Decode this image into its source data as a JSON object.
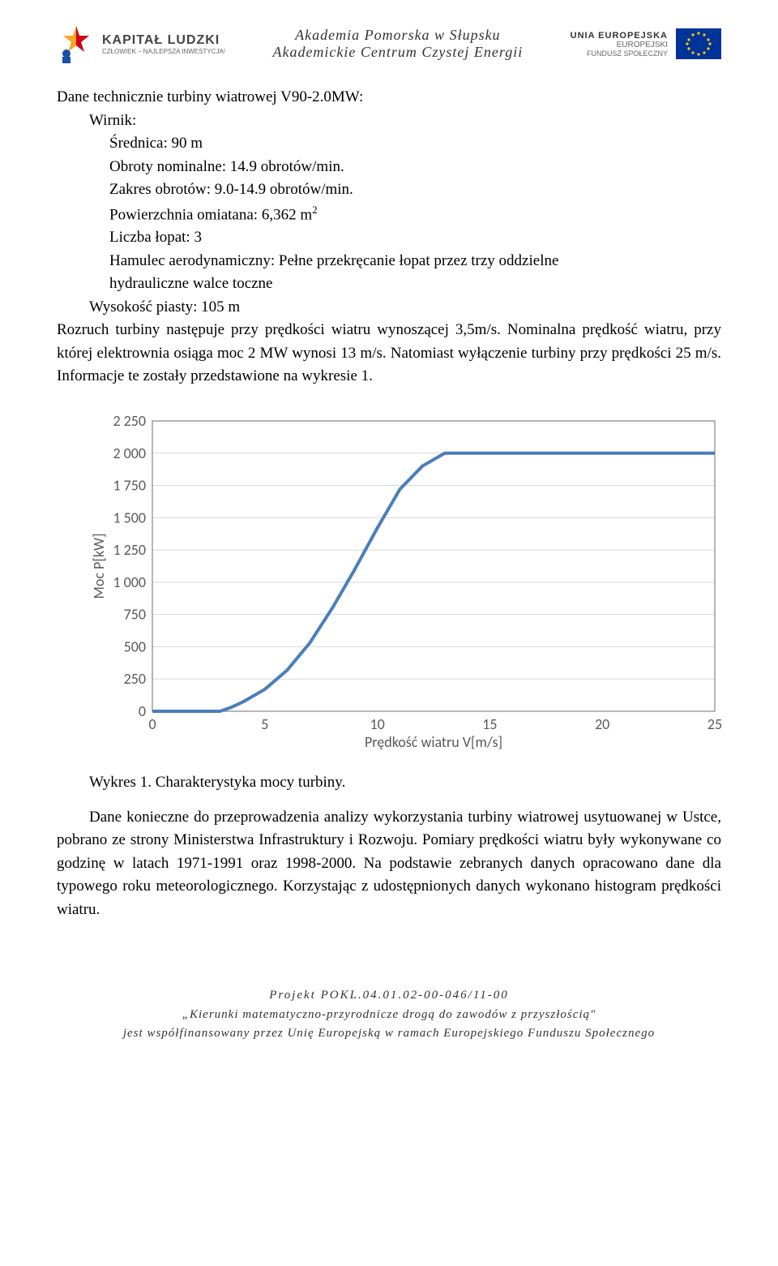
{
  "header": {
    "left_logo_main": "KAPITAŁ LUDZKI",
    "left_logo_sub": "CZŁOWIEK – NAJLEPSZA INWESTYCJA!",
    "center_line1": "Akademia Pomorska w Słupsku",
    "center_line2": "Akademickie Centrum Czystej Energii",
    "right_main": "UNIA EUROPEJSKA",
    "right_sub1": "EUROPEJSKI",
    "right_sub2": "FUNDUSZ SPOŁECZNY"
  },
  "body": {
    "line1": "Dane technicznie turbiny wiatrowej V90-2.0MW:",
    "line2": "Wirnik:",
    "line3": "Średnica: 90 m",
    "line4": "Obroty nominalne: 14.9 obrotów/min.",
    "line5": "Zakres obrotów: 9.0-14.9 obrotów/min.",
    "line6a": "Powierzchnia omiatana: 6,362 m",
    "line6b": "2",
    "line7": "Liczba łopat: 3",
    "line8a": "Hamulec aerodynamiczny: Pełne przekręcanie łopat przez trzy oddzielne",
    "line8b": "hydrauliczne walce toczne",
    "line9": "Wysokość piasty: 105 m",
    "para": "Rozruch turbiny następuje przy prędkości wiatru wynoszącej 3,5m/s. Nominalna prędkość wiatru, przy której elektrownia osiąga moc 2 MW wynosi 13 m/s. Natomiast wyłączenie turbiny przy prędkości 25 m/s. Informacje te zostały przedstawione na wykresie 1.",
    "caption": "Wykres 1. Charakterystyka mocy turbiny.",
    "para2": "Dane konieczne do przeprowadzenia analizy wykorzystania turbiny wiatrowej usytuowanej w Ustce, pobrano ze strony Ministerstwa Infrastruktury i Rozwoju. Pomiary prędkości wiatru były wykonywane co godzinę w latach 1971-1991 oraz 1998-2000. Na podstawie zebranych danych opracowano dane dla typowego roku meteorologicznego. Korzystając z udostępnionych danych wykonano histogram prędkości wiatru."
  },
  "chart": {
    "type": "line",
    "title": "",
    "xlabel": "Prędkość wiatru V[m/s]",
    "ylabel": "Moc P[kW]",
    "xlim": [
      0,
      25
    ],
    "ylim": [
      0,
      2250
    ],
    "xticks": [
      0,
      5,
      10,
      15,
      20,
      25
    ],
    "yticks": [
      0,
      250,
      500,
      750,
      1000,
      1250,
      1500,
      1750,
      2000,
      2250
    ],
    "series_color": "#4a7ebb",
    "series_width": 4,
    "grid_color": "#d9d9d9",
    "border_color": "#868686",
    "background_color": "#ffffff",
    "label_fontsize": 18,
    "tick_fontsize": 18,
    "data_x": [
      0,
      1,
      2,
      3,
      3.5,
      4,
      5,
      6,
      7,
      8,
      9,
      10,
      11,
      12,
      13,
      14,
      15,
      20,
      25
    ],
    "data_y": [
      0,
      0,
      0,
      0,
      30,
      70,
      170,
      320,
      530,
      800,
      1100,
      1420,
      1720,
      1900,
      2000,
      2000,
      2000,
      2000,
      2000
    ]
  },
  "footer": {
    "line1": "Projekt POKL.04.01.02-00-046/11-00",
    "line2": "„Kierunki matematyczno-przyrodnicze drogą do zawodów z przyszłością\"",
    "line3": "jest współfinansowany przez Unię Europejską w ramach Europejskiego Funduszu Społecznego"
  }
}
